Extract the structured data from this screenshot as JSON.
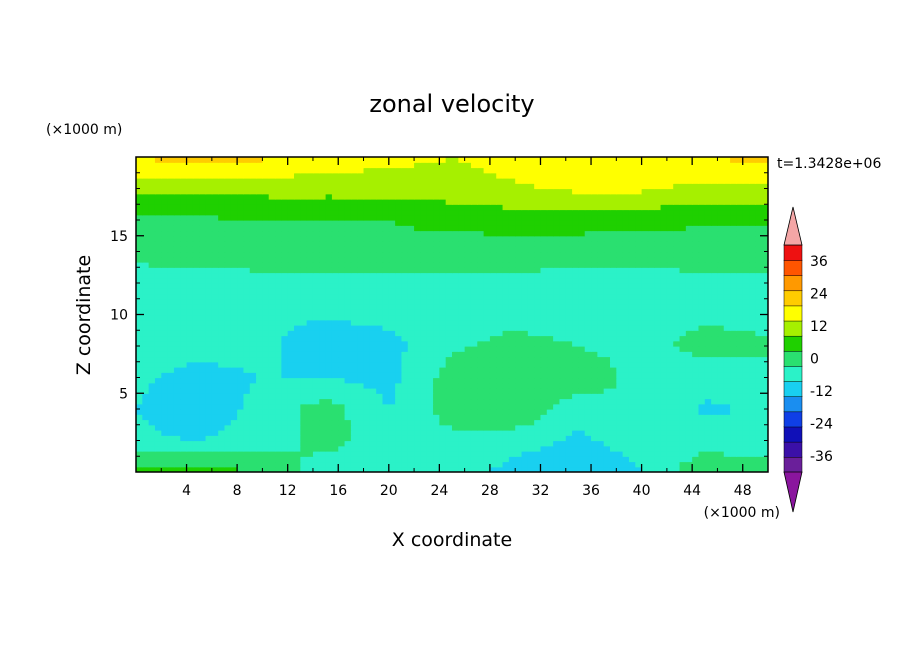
{
  "chart_data": {
    "type": "heatmap",
    "title": "zonal velocity",
    "xlabel": "X coordinate",
    "ylabel": "Z coordinate",
    "x_unit": "(×1000 m)",
    "y_unit": "(×1000 m)",
    "time_label": "t=1.3428e+06",
    "xlim": [
      0,
      50
    ],
    "ylim": [
      0,
      20
    ],
    "x_ticks": [
      "4",
      "8",
      "12",
      "16",
      "20",
      "24",
      "28",
      "32",
      "36",
      "40",
      "44",
      "48"
    ],
    "y_ticks": [
      "5",
      "10",
      "15"
    ],
    "colorbar_ticks": [
      "36",
      "24",
      "12",
      "0",
      "-12",
      "-24",
      "-36"
    ],
    "colorbar_levels": [
      -42,
      -36,
      -30,
      -24,
      -18,
      -12,
      -6,
      0,
      6,
      12,
      18,
      24,
      30,
      36,
      42
    ],
    "colorbar_colors": [
      "#6a1f9a",
      "#3b10a8",
      "#1010b8",
      "#0f3fe6",
      "#1a8ef0",
      "#19d0f0",
      "#2bf2c8",
      "#2ae070",
      "#1fd000",
      "#a6f000",
      "#ffff00",
      "#ffcc00",
      "#ff9900",
      "#ff5500",
      "#ee1111"
    ],
    "colorbar_over_color": "#f4a6a6",
    "colorbar_under_color": "#8a159e",
    "grid": false,
    "field_summary": {
      "x_km": [
        0,
        5,
        10,
        15,
        20,
        25,
        30,
        35,
        40,
        45,
        50
      ],
      "z_km": [
        0,
        2,
        4,
        6,
        8,
        10,
        12,
        14,
        16,
        18,
        20
      ],
      "values": [
        [
          8,
          10,
          5,
          -3,
          -4,
          -3,
          -8,
          -10,
          -6,
          5,
          4
        ],
        [
          -5,
          -6,
          -3,
          2,
          -3,
          -2,
          -4,
          -7,
          -4,
          -3,
          -4
        ],
        [
          -6,
          -10,
          -4,
          3,
          -6,
          3,
          6,
          -4,
          0,
          -7,
          -5
        ],
        [
          -5,
          -8,
          -6,
          -6,
          -8,
          3,
          5,
          4,
          -2,
          -4,
          -3
        ],
        [
          -3,
          -4,
          -4,
          -12,
          -8,
          -1,
          2,
          0,
          -2,
          2,
          1
        ],
        [
          -3,
          -3,
          -4,
          -5,
          -4,
          -3,
          -2,
          -3,
          -2,
          -1,
          -2
        ],
        [
          -3,
          -2,
          -2,
          -2,
          -2,
          -2,
          -1,
          -2,
          -2,
          -1,
          -2
        ],
        [
          2,
          2,
          3,
          3,
          4,
          3,
          2,
          2,
          2,
          2,
          3
        ],
        [
          5,
          5,
          6,
          6,
          6,
          8,
          9,
          9,
          8,
          7,
          7
        ],
        [
          14,
          14,
          14,
          14,
          14,
          15,
          17,
          19,
          19,
          16,
          16
        ],
        [
          24,
          27,
          25,
          22,
          20,
          18,
          21,
          23,
          21,
          24,
          26
        ]
      ]
    }
  }
}
